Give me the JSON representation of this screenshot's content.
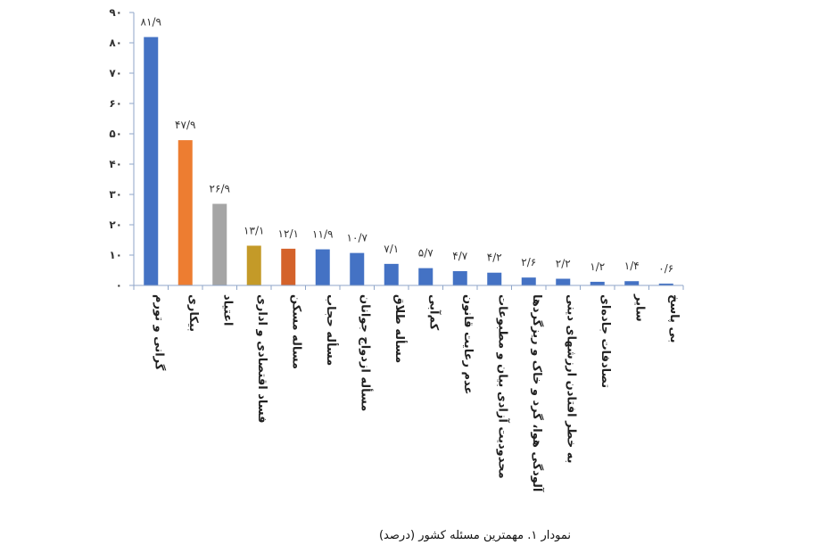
{
  "caption": "نمودار ۱. مهمترین مسئله کشور (درصد)",
  "chart_data": {
    "type": "bar",
    "title": "",
    "xlabel": "",
    "ylabel": "",
    "ylim": [
      0,
      90
    ],
    "yticks": [
      0,
      10,
      20,
      30,
      40,
      50,
      60,
      70,
      80,
      90
    ],
    "ytick_labels": [
      "۰",
      "۱۰",
      "۲۰",
      "۳۰",
      "۴۰",
      "۵۰",
      "۶۰",
      "۷۰",
      "۸۰",
      "۹۰"
    ],
    "grid": false,
    "legend": "none",
    "categories": [
      "گرانی و تورم",
      "بیکاری",
      "اعتیاد",
      "فساد اقتصادی و اداری",
      "مساله مسکن",
      "مسأله حجاب",
      "مسأله ازدواج جوانان",
      "مسأله طلاق",
      "کم‌آبی",
      "عدم رعایت قانون",
      "محدودیت آزادی بیان و مطبوعات",
      "آلودگی هوا، گرد و خاک و ریزگردها",
      "به خطر افتادن ارزشهای دینی",
      "تصادفات جاده‌ای",
      "سایر",
      "بی پاسخ"
    ],
    "values": [
      81.9,
      47.9,
      26.9,
      13.1,
      12.1,
      11.9,
      10.7,
      7.1,
      5.7,
      4.7,
      4.2,
      2.6,
      2.2,
      1.2,
      1.4,
      0.6
    ],
    "value_labels": [
      "۸۱/۹",
      "۴۷/۹",
      "۲۶/۹",
      "۱۳/۱",
      "۱۲/۱",
      "۱۱/۹",
      "۱۰/۷",
      "۷/۱",
      "۵/۷",
      "۴/۷",
      "۴/۲",
      "۲/۶",
      "۲/۲",
      "۱/۲",
      "۱/۴",
      "۰/۶"
    ],
    "colors": [
      "#4472c4",
      "#ed7d31",
      "#a5a5a5",
      "#c49a28",
      "#d4622a",
      "#4472c4",
      "#4472c4",
      "#4472c4",
      "#4472c4",
      "#4472c4",
      "#4472c4",
      "#4472c4",
      "#4472c4",
      "#4472c4",
      "#4472c4",
      "#4472c4"
    ],
    "axis_color": "#8fa6c9"
  }
}
